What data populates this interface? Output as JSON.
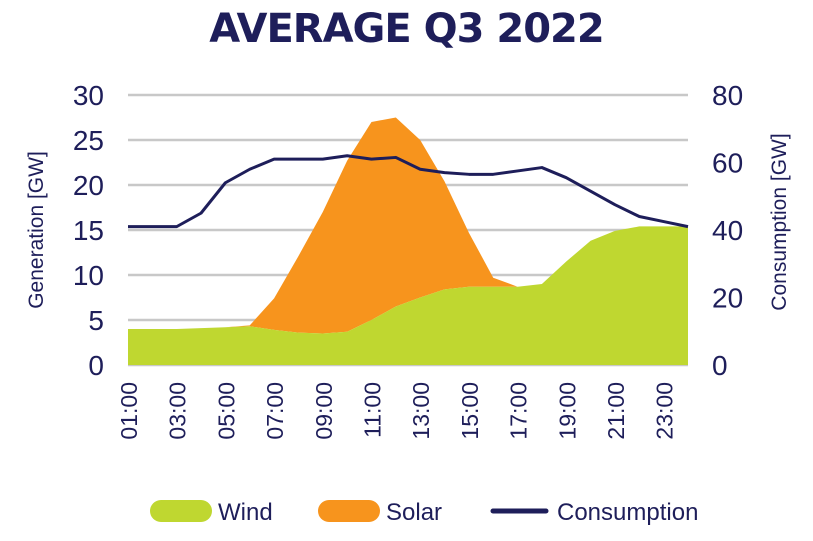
{
  "chart_data": {
    "type": "area",
    "title": "AVERAGE Q3 2022",
    "x": [
      "01:00",
      "02:00",
      "03:00",
      "04:00",
      "05:00",
      "06:00",
      "07:00",
      "08:00",
      "09:00",
      "10:00",
      "11:00",
      "12:00",
      "13:00",
      "14:00",
      "15:00",
      "16:00",
      "17:00",
      "18:00",
      "19:00",
      "20:00",
      "21:00",
      "22:00",
      "23:00",
      "24:00"
    ],
    "x_tick_labels": [
      "01:00",
      "03:00",
      "05:00",
      "07:00",
      "09:00",
      "11:00",
      "13:00",
      "15:00",
      "17:00",
      "19:00",
      "21:00",
      "23:00"
    ],
    "ylabel_left": "Generation [GW]",
    "ylabel_right": "Consumption [GW]",
    "ylim_left": [
      0,
      30
    ],
    "ylim_right": [
      0,
      80
    ],
    "yticks_left": [
      0,
      5,
      10,
      15,
      20,
      25,
      30
    ],
    "yticks_right": [
      0,
      20,
      40,
      60,
      80
    ],
    "grid": true,
    "legend_position": "bottom",
    "series": [
      {
        "name": "Wind",
        "kind": "area",
        "axis": "left",
        "color": "#bfd730",
        "values": [
          4.0,
          4.0,
          4.0,
          4.1,
          4.2,
          4.3,
          3.9,
          3.6,
          3.5,
          3.7,
          5.0,
          6.5,
          7.5,
          8.4,
          8.7,
          8.7,
          8.7,
          9.0,
          11.5,
          13.8,
          14.9,
          15.4,
          15.4,
          15.4
        ]
      },
      {
        "name": "Solar",
        "kind": "area",
        "axis": "left",
        "stacked": true,
        "color": "#f7941d",
        "values": [
          0,
          0,
          0,
          0,
          0,
          0.1,
          3.5,
          8.5,
          13.5,
          19.0,
          22.0,
          21.0,
          17.5,
          12.0,
          6.0,
          1.0,
          0,
          0,
          0,
          0,
          0,
          0,
          0,
          0
        ]
      },
      {
        "name": "Consumption",
        "kind": "line",
        "axis": "right",
        "color": "#1e1e5a",
        "values": [
          41,
          41,
          41,
          45,
          54,
          58,
          61,
          61,
          61,
          62,
          61,
          61.5,
          58,
          57,
          56.5,
          56.5,
          57.5,
          58.5,
          55.5,
          51.5,
          47.5,
          44,
          42.5,
          41
        ]
      }
    ]
  }
}
